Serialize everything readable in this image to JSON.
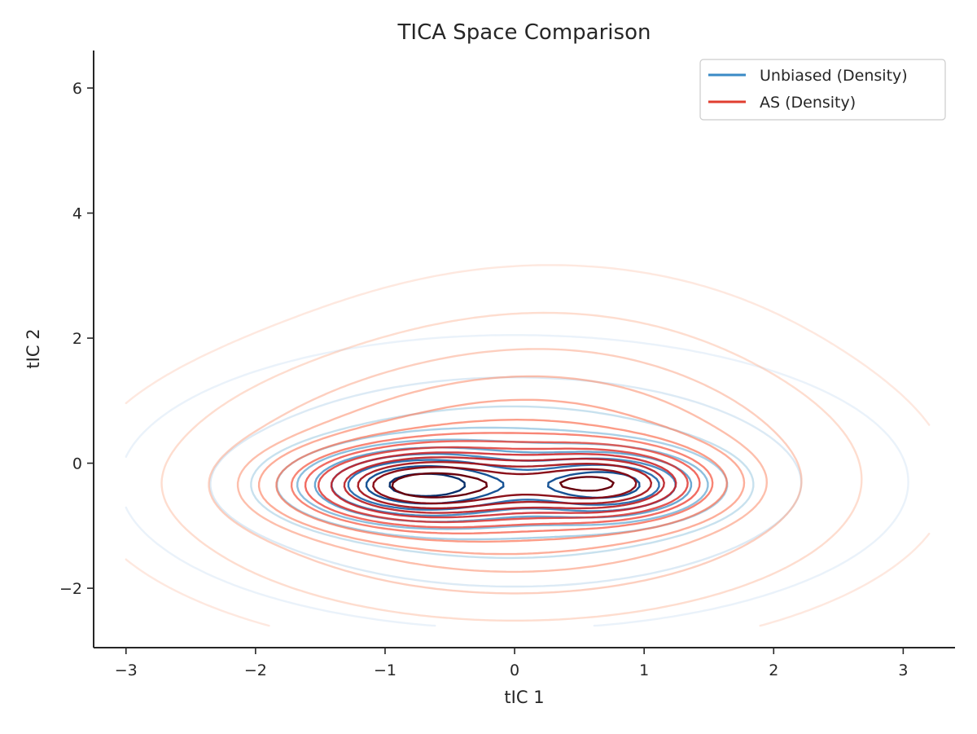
{
  "chart_data": {
    "type": "contour",
    "title": "TICA Space Comparison",
    "xlabel": "tIC 1",
    "ylabel": "tIC 2",
    "xlim": [
      -3.25,
      3.4
    ],
    "ylim": [
      -2.95,
      6.6
    ],
    "xticks": [
      -3,
      -2,
      -1,
      0,
      1,
      2,
      3
    ],
    "xtick_labels": [
      "−3",
      "−2",
      "−1",
      "0",
      "1",
      "2",
      "3"
    ],
    "yticks": [
      -2,
      0,
      2,
      4,
      6
    ],
    "ytick_labels": [
      "−2",
      "0",
      "2",
      "4",
      "6"
    ],
    "grid": false,
    "legend_position": "top-right",
    "series": [
      {
        "name": "Unbiased (Density)",
        "color": "#3a8ac6",
        "palette": "Blues",
        "modes": [
          {
            "x": -0.75,
            "y": -0.35,
            "amplitude": 1.0,
            "sx": 0.55,
            "sy": 0.36
          },
          {
            "x": 0.75,
            "y": -0.35,
            "amplitude": 0.82,
            "sx": 0.45,
            "sy": 0.33
          },
          {
            "x": 0.0,
            "y": -0.3,
            "amplitude": 0.35,
            "sx": 1.1,
            "sy": 0.85
          }
        ],
        "levels": 10
      },
      {
        "name": "AS (Density)",
        "color": "#e03e2f",
        "palette": "Reds",
        "modes": [
          {
            "x": -0.72,
            "y": -0.36,
            "amplitude": 1.0,
            "sx": 0.6,
            "sy": 0.38
          },
          {
            "x": 0.72,
            "y": -0.33,
            "amplitude": 0.85,
            "sx": 0.48,
            "sy": 0.35
          },
          {
            "x": 0.0,
            "y": -0.3,
            "amplitude": 0.4,
            "sx": 1.2,
            "sy": 1.0
          },
          {
            "x": 0.3,
            "y": 1.2,
            "amplitude": 0.05,
            "sx": 1.0,
            "sy": 1.0
          }
        ],
        "levels": 14
      }
    ]
  }
}
